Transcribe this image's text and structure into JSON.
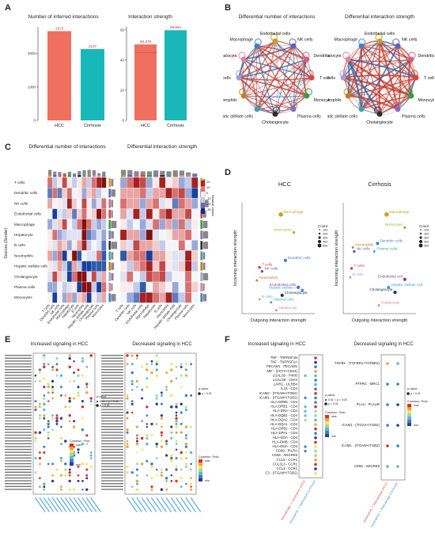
{
  "panels": {
    "A": {
      "letter": "A"
    },
    "B": {
      "letter": "B"
    },
    "C": {
      "letter": "C"
    },
    "D": {
      "letter": "D"
    },
    "E": {
      "letter": "E"
    },
    "F": {
      "letter": "F"
    }
  },
  "colors": {
    "hcc": "#f07060",
    "cirrhosis": "#18b8b8",
    "up": "#c0392b",
    "down": "#2060b0"
  },
  "chart_data": [
    {
      "id": "A-left",
      "type": "bar",
      "title": "Number of inferred interactions",
      "categories": [
        "HCC",
        "Cirrhosis"
      ],
      "values": [
        2673,
        2137
      ],
      "value_labels": [
        "2673",
        "2137"
      ],
      "ylim": [
        0,
        2800
      ],
      "yticks": [
        0,
        1000,
        2000
      ],
      "ytick_labels": [
        "0",
        "1000",
        "2000"
      ]
    },
    {
      "id": "A-right",
      "type": "bar",
      "title": "Interaction strength",
      "categories": [
        "HCC",
        "Cirrhosis"
      ],
      "values": [
        50.379,
        59.804
      ],
      "value_labels": [
        "50.379",
        "59.804"
      ],
      "ylim": [
        0,
        62
      ],
      "yticks": [
        0,
        20,
        40,
        60
      ],
      "ytick_labels": [
        "0",
        "20",
        "40",
        "60"
      ]
    },
    {
      "id": "B",
      "type": "network",
      "titles": [
        "Differential number of interactions",
        "Differential interaction strength"
      ],
      "nodes": [
        "Endothelial cells",
        "NK cells",
        "Dendritic cells",
        "T cells",
        "Monocytes",
        "Plasma cells",
        "Cholangiocyte",
        "Hepatic stellate cells",
        "Neutrophils",
        "B cells",
        "Hepatocyte",
        "Macrophage"
      ],
      "node_colors": [
        "#c8a020",
        "#6060c0",
        "#d06090",
        "#e04040",
        "#30a040",
        "#8070c0",
        "#303030",
        "#40a0b0",
        "#c08020",
        "#a0a0d0",
        "#e080a0",
        "#4080d0"
      ]
    },
    {
      "id": "C",
      "type": "heatmap",
      "titles": [
        "Differential number of interactions",
        "Differential interaction strength"
      ],
      "ylabel": "Sources (Sender)",
      "rows": [
        "T cells",
        "Dendritic cells",
        "NK cells",
        "Endothelial cells",
        "Macrophage",
        "Hepatocyte",
        "B cells",
        "Neutrophils",
        "Hepatic stellate cells",
        "Cholangiocyte",
        "Plasma cells",
        "Monocytes"
      ],
      "columns": [
        "T cells",
        "Dendritic cells",
        "NK cells",
        "Endothelial cells",
        "Macrophage",
        "Hepatocyte",
        "B cells",
        "Neutrophils",
        "Hepatic stellate cells",
        "Cholangiocyte",
        "Plasma cells",
        "Monocytes"
      ],
      "legend_title": "Relative values",
      "legend_ticks": [
        "20",
        "10",
        "0",
        "-10",
        "-20",
        "-30"
      ]
    },
    {
      "id": "D-HCC",
      "type": "scatter",
      "title": "HCC",
      "xlabel": "Outgoing interaction strength",
      "ylabel": "Incoming interaction strength",
      "size_legend_title": "Count",
      "size_legend": [
        "100",
        "200",
        "300",
        "400",
        "500"
      ],
      "points": [
        {
          "label": "Macrophage",
          "x": 0.55,
          "y": 0.93,
          "color": "#c8a020",
          "size": 4
        },
        {
          "label": "Monocytes",
          "x": 0.75,
          "y": 0.75,
          "color": "#90c040",
          "size": 2.5
        },
        {
          "label": "Dendritic cells",
          "x": 0.62,
          "y": 0.47,
          "color": "#4080d0",
          "size": 3
        },
        {
          "label": "T cells",
          "x": 0.22,
          "y": 0.4,
          "color": "#e04040",
          "size": 2.5
        },
        {
          "label": "NK cells",
          "x": 0.26,
          "y": 0.36,
          "color": "#6060c0",
          "size": 2.5
        },
        {
          "label": "Neutrophils",
          "x": 0.18,
          "y": 0.27,
          "color": "#c08020",
          "size": 2
        },
        {
          "label": "Endothelial cells",
          "x": 0.82,
          "y": 0.2,
          "color": "#8040a0",
          "size": 3
        },
        {
          "label": "Hepatic stellate cell",
          "x": 0.88,
          "y": 0.17,
          "color": "#40a0e0",
          "size": 3
        },
        {
          "label": "Cholangiocyte",
          "x": 0.57,
          "y": 0.12,
          "color": "#303060",
          "size": 3
        },
        {
          "label": "B cells",
          "x": 0.22,
          "y": 0.08,
          "color": "#a0a0d0",
          "size": 2
        },
        {
          "label": "Plasma cells",
          "x": 0.4,
          "y": 0.05,
          "color": "#30b0a0",
          "size": 2
        },
        {
          "label": "Hepatocyte",
          "x": 0.48,
          "y": -0.03,
          "color": "#e080a0",
          "size": 2
        }
      ]
    },
    {
      "id": "D-Cirrhosis",
      "type": "scatter",
      "title": "Cirrhosis",
      "xlabel": "Outgoing interaction strength",
      "ylabel": "Incoming interaction strength",
      "size_legend_title": "Count",
      "size_legend": [
        "100",
        "200",
        "300",
        "400",
        "500"
      ],
      "points": [
        {
          "label": "Macrophage",
          "x": 0.62,
          "y": 0.93,
          "color": "#c8a020",
          "size": 4
        },
        {
          "label": "Monocytes",
          "x": 0.9,
          "y": 0.8,
          "color": "#90c040",
          "size": 2.5
        },
        {
          "label": "Dendritic cells",
          "x": 0.48,
          "y": 0.64,
          "color": "#4080d0",
          "size": 3
        },
        {
          "label": "Neutrophils",
          "x": 0.1,
          "y": 0.6,
          "color": "#c08020",
          "size": 2
        },
        {
          "label": "NK cells",
          "x": 0.12,
          "y": 0.56,
          "color": "#6060c0",
          "size": 2.5
        },
        {
          "label": "Plasma cells",
          "x": 0.43,
          "y": 0.56,
          "color": "#30b0a0",
          "size": 2
        },
        {
          "label": "T cells",
          "x": 0.08,
          "y": 0.39,
          "color": "#e04040",
          "size": 2.5
        },
        {
          "label": "B cells",
          "x": 0.06,
          "y": 0.3,
          "color": "#a0a0d0",
          "size": 2
        },
        {
          "label": "Endothelial cell",
          "x": 0.9,
          "y": 0.28,
          "color": "#8040a0",
          "size": 3
        },
        {
          "label": "Hepatic stellate cell",
          "x": 0.65,
          "y": 0.2,
          "color": "#40a0e0",
          "size": 3
        },
        {
          "label": "Cholangiocyte",
          "x": 0.75,
          "y": 0.15,
          "color": "#303060",
          "size": 3
        },
        {
          "label": "Hepatocyte",
          "x": 0.5,
          "y": 0.02,
          "color": "#e080a0",
          "size": 2
        }
      ]
    },
    {
      "id": "E",
      "type": "dotplot",
      "titles": [
        "Increased signaling in HCC",
        "Decreased signaling in HCC"
      ],
      "legend": {
        "title": "p-value",
        "items": [
          "0.01 < p < 0.05",
          "p < 0.01"
        ],
        "items_right": [
          "p < 0.01"
        ],
        "color_title": "Commun. Prob.",
        "max": "max",
        "min": "min"
      }
    },
    {
      "id": "F",
      "type": "dotplot",
      "titles": [
        "Increased signaling in HCC",
        "Decreased signaling in HCC"
      ],
      "left_rows": [
        "TNF - TNFRSF1B",
        "TNF - TNFRSF1A",
        "PECAM1 - PECAM1",
        "MIF - (CD74+CD44)",
        "LGALS9 - P4HB",
        "LGALS9 - CD44",
        "LAIR1 - LILRB4",
        "IL16 - CD4",
        "ICAM2 - (ITGAM+ITGB2)",
        "ICAM1 - (ITGAM+ITGB2)",
        "HLA-DRB5 - CD4",
        "HLA-DRB1 - CD4",
        "HLA-DRA - CD4",
        "HLA-DQB1 - CD4",
        "HLA-DQA2 - CD4",
        "HLA-DQA1 - CD4",
        "HLA-DPB1 - CD4",
        "HLA-DPA1 - CD4",
        "HLA-DOA - CD4",
        "HLA-DMB - CD4",
        "HLA-DMA - CD4",
        "CD99 - PILRA",
        "CD55 - ADGRE5",
        "CCL5 - CCR1",
        "CCL3L3 - CCR1",
        "CCL3 - CCR1",
        "C3 - (ITGAM+ITGB2)"
      ],
      "left_cols": [
        "Macrophage -> Neutrophils (HCC)",
        "Neutrophils -> Neutrophils (Cirrhosis)"
      ],
      "right_rows": [
        "TGFB1 - (TGFBR1+TGFBR2)",
        "PTPRC - MRC1",
        "PLAU - PLAUR",
        "ICAM1 - (ITGAX+ITGB2)",
        "ICAM1 - (ITGAM+ITGB2)",
        "CD55 - ADGRE5"
      ],
      "right_cols": [
        "Neutrophils -> Macrophage (HCC)",
        "Neutrophils -> Macrophage (Cirrhosis)"
      ],
      "legend": {
        "title": "p-value",
        "items": [
          "0.01 < p < 0.05",
          "p < 0.01"
        ],
        "items_right": [
          "p < 0.01"
        ],
        "color_title": "Commun. Prob.",
        "max": "max",
        "min": "min"
      }
    }
  ]
}
